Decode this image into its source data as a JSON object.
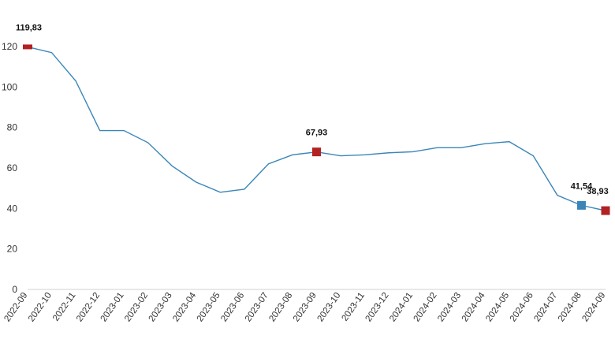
{
  "chart_data": {
    "type": "line",
    "title": "",
    "xlabel": "",
    "ylabel": "",
    "ylim": [
      0,
      120
    ],
    "yticks": [
      "0",
      "20",
      "40",
      "60",
      "80",
      "100",
      "120"
    ],
    "grid": false,
    "legend": "none",
    "categories": [
      "2022-09",
      "2022-10",
      "2022-11",
      "2022-12",
      "2023-01",
      "2023-02",
      "2023-03",
      "2023-04",
      "2023-05",
      "2023-06",
      "2023-07",
      "2023-08",
      "2023-09",
      "2023-10",
      "2023-11",
      "2023-12",
      "2024-01",
      "2024-02",
      "2024-03",
      "2024-04",
      "2024-05",
      "2024-06",
      "2024-07",
      "2024-08",
      "2024-09"
    ],
    "series": [
      {
        "color": "#3a86b8",
        "values": [
          119.83,
          117.0,
          103.0,
          78.5,
          78.5,
          72.5,
          61.0,
          53.0,
          48.0,
          49.5,
          62.0,
          66.5,
          67.93,
          66.0,
          66.5,
          67.5,
          68.0,
          70.0,
          70.0,
          72.0,
          73.0,
          66.0,
          46.5,
          41.54,
          38.93
        ]
      }
    ],
    "highlights": [
      {
        "index": 0,
        "label": "119,83",
        "color": "#b22222"
      },
      {
        "index": 12,
        "label": "67,93",
        "color": "#b22222"
      },
      {
        "index": 23,
        "label": "41,54",
        "color": "#3a86b8"
      },
      {
        "index": 24,
        "label": "38,93",
        "color": "#b22222"
      }
    ]
  }
}
